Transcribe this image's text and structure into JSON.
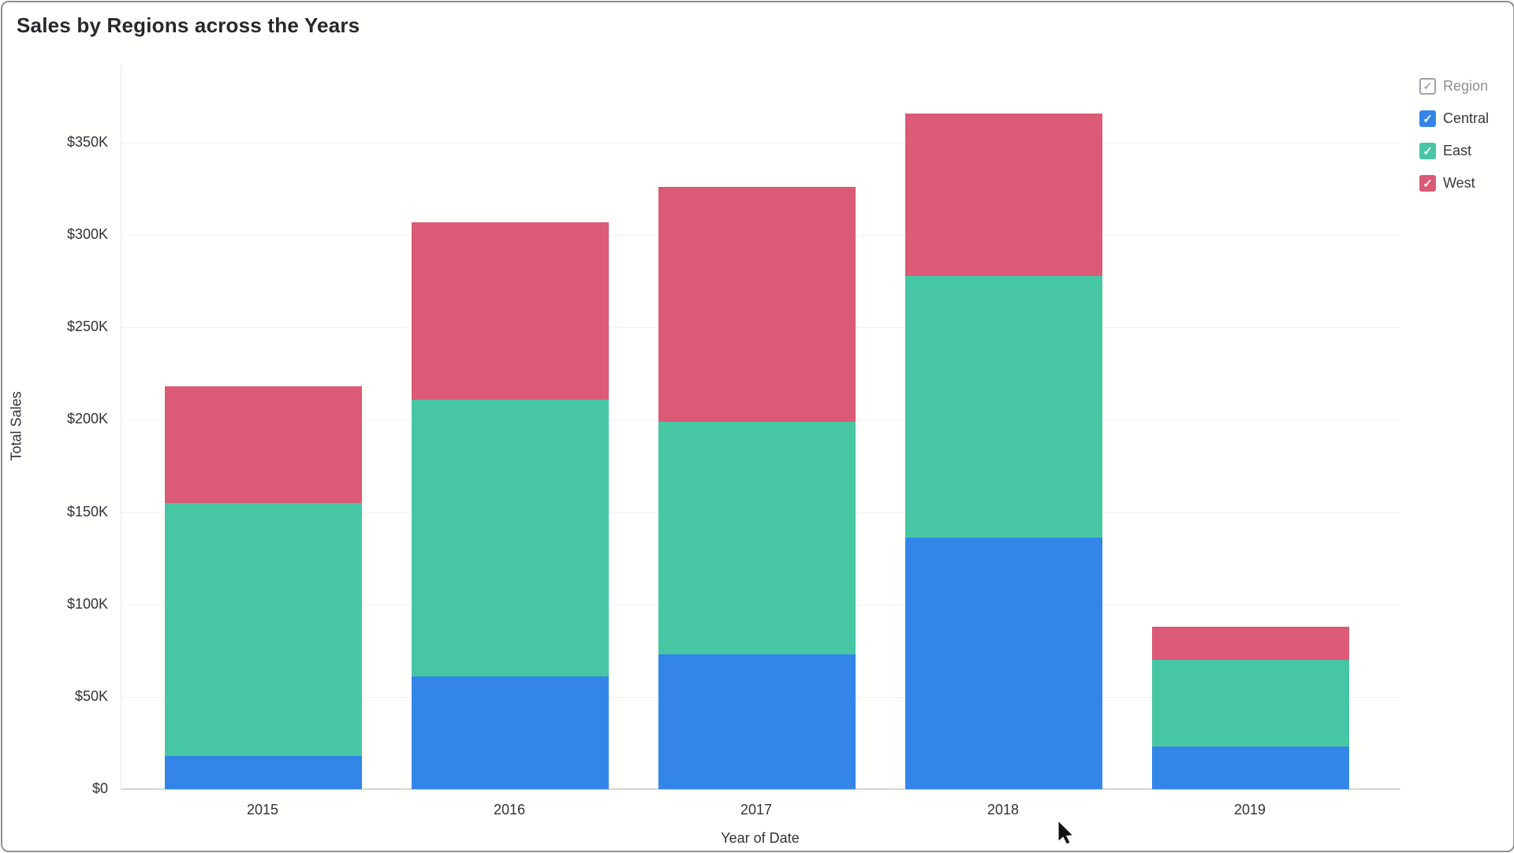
{
  "window": {
    "title": "Sales by Regions across the Years"
  },
  "chart_data": {
    "type": "bar",
    "stacked": true,
    "title": "Sales by Regions across the Years",
    "xlabel": "Year of Date",
    "ylabel": "Total Sales",
    "categories": [
      "2015",
      "2016",
      "2017",
      "2018",
      "2019"
    ],
    "series": [
      {
        "name": "Central",
        "color": "#3385E8",
        "values": [
          18000,
          61000,
          73000,
          136000,
          23000
        ]
      },
      {
        "name": "East",
        "color": "#47C6A4",
        "values": [
          137000,
          150000,
          126000,
          142000,
          47000
        ]
      },
      {
        "name": "West",
        "color": "#DB5A76",
        "values": [
          63000,
          96000,
          127000,
          88000,
          18000
        ]
      }
    ],
    "totals": [
      218000,
      307000,
      326000,
      366000,
      88000
    ],
    "y_ticks": [
      {
        "value": 0,
        "label": "$0"
      },
      {
        "value": 50000,
        "label": "$50K"
      },
      {
        "value": 100000,
        "label": "$100K"
      },
      {
        "value": 150000,
        "label": "$150K"
      },
      {
        "value": 200000,
        "label": "$200K"
      },
      {
        "value": 250000,
        "label": "$250K"
      },
      {
        "value": 300000,
        "label": "$300K"
      },
      {
        "value": 350000,
        "label": "$350K"
      }
    ],
    "ylim": [
      0,
      391000
    ],
    "grid": "horizontal",
    "legend_position": "top-right"
  },
  "legend": {
    "header": {
      "label": "Region",
      "state": "partial",
      "glyph": "✓"
    },
    "items": [
      {
        "label": "Central",
        "color": "#3385E8",
        "checked": true,
        "glyph": "✓"
      },
      {
        "label": "East",
        "color": "#47C6A4",
        "checked": true,
        "glyph": "✓"
      },
      {
        "label": "West",
        "color": "#DB5A76",
        "checked": true,
        "glyph": "✓"
      }
    ]
  },
  "pointer": {
    "visible": true
  }
}
